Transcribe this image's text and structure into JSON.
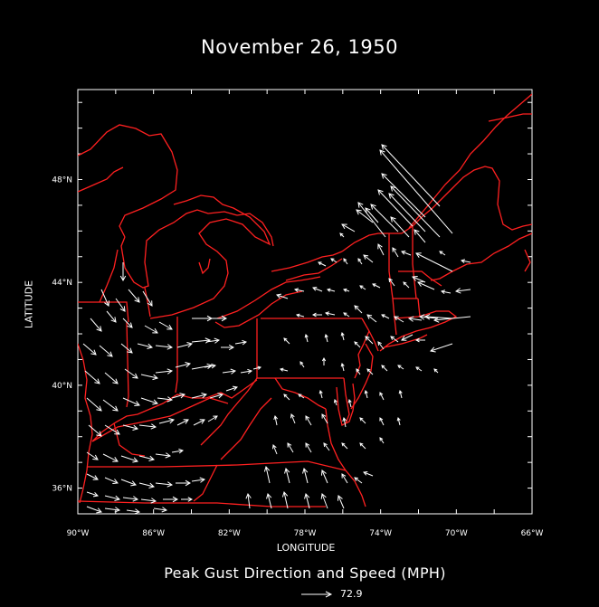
{
  "title": "November 26, 1950",
  "axes": {
    "x_label": "LONGITUDE",
    "y_label": "LATITUDE",
    "x_ticks": [
      "90°W",
      "86°W",
      "82°W",
      "78°W",
      "74°W",
      "70°W",
      "66°W"
    ],
    "y_ticks": [
      "48°N",
      "44°N",
      "40°N",
      "36°N"
    ],
    "lon_range": [
      -90,
      -66
    ],
    "lat_range": [
      35,
      51.5
    ]
  },
  "caption": "Peak Gust Direction and Speed (MPH)",
  "reference_vector": {
    "value": "72.9"
  },
  "colors": {
    "background": "#000000",
    "boundaries": "#ff2020",
    "vectors": "#ffffff"
  }
}
